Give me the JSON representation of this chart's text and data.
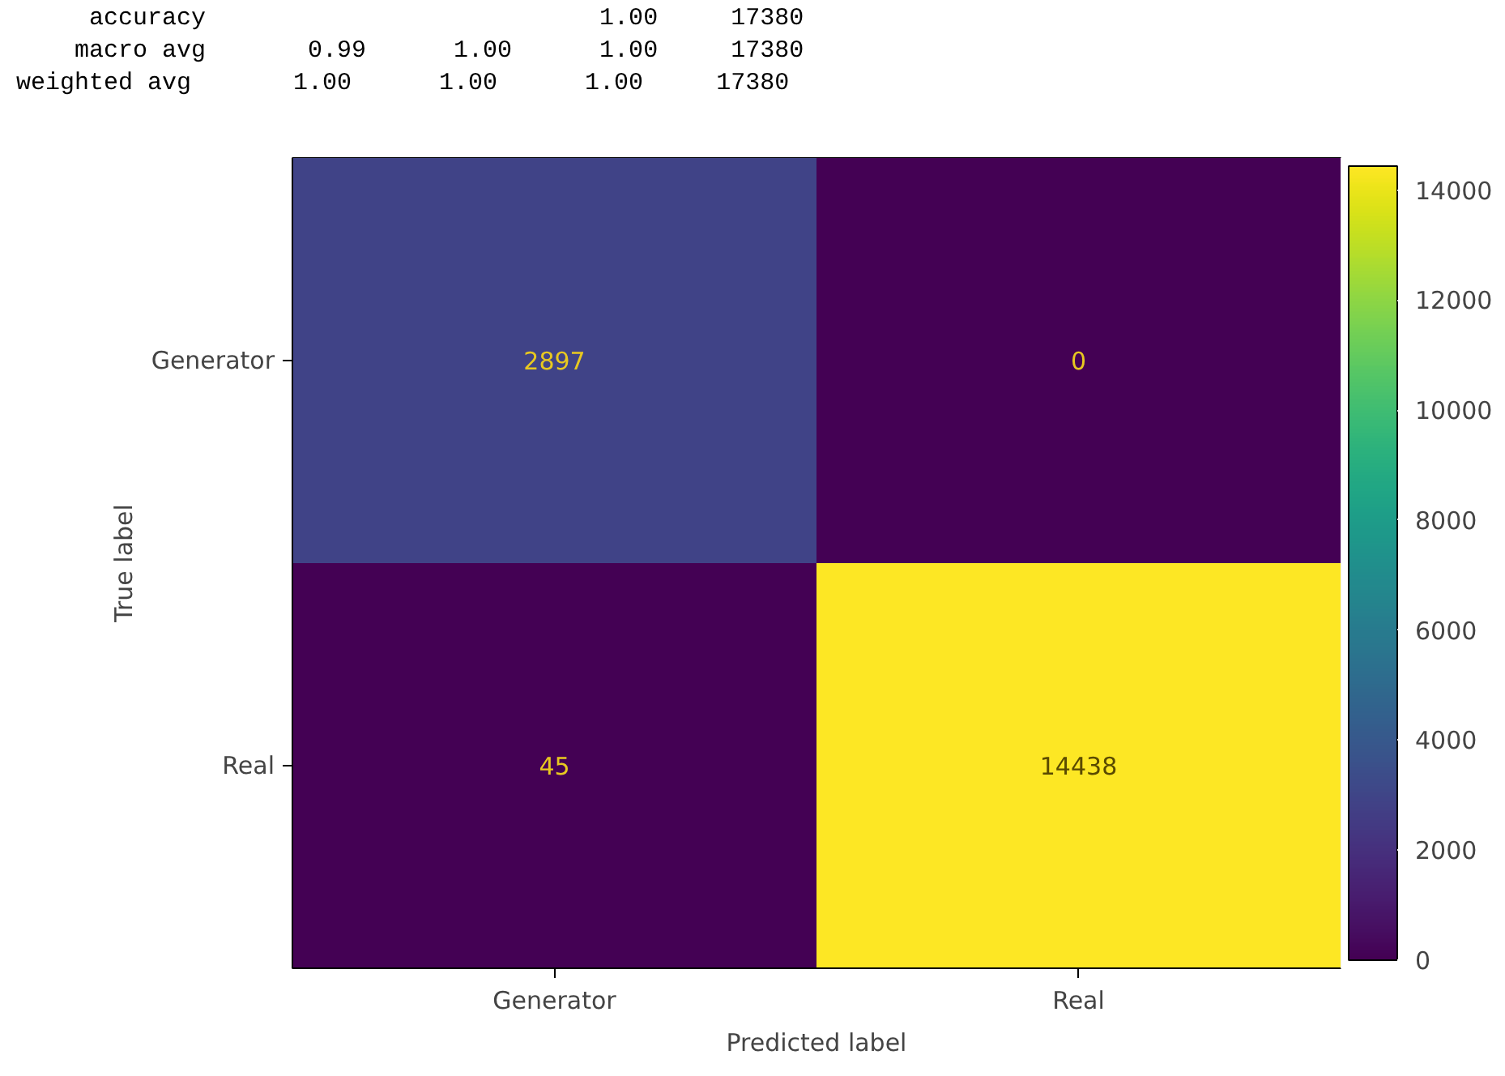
{
  "chart_data": {
    "type": "heatmap",
    "xlabel": "Predicted label",
    "ylabel": "True label",
    "categories": [
      "Generator",
      "Real"
    ],
    "y_categories": [
      "Generator",
      "Real"
    ],
    "cells": [
      [
        2897,
        0
      ],
      [
        45,
        14438
      ]
    ],
    "clim": [
      0,
      14438
    ],
    "cticks": [
      0,
      2000,
      4000,
      6000,
      8000,
      10000,
      12000,
      14000
    ],
    "data_labels": true,
    "annotations": [
      "     accuracy                           1.00     17380",
      "    macro avg       0.99      1.00      1.00     17380",
      "weighted avg       1.00      1.00      1.00     17380"
    ]
  }
}
